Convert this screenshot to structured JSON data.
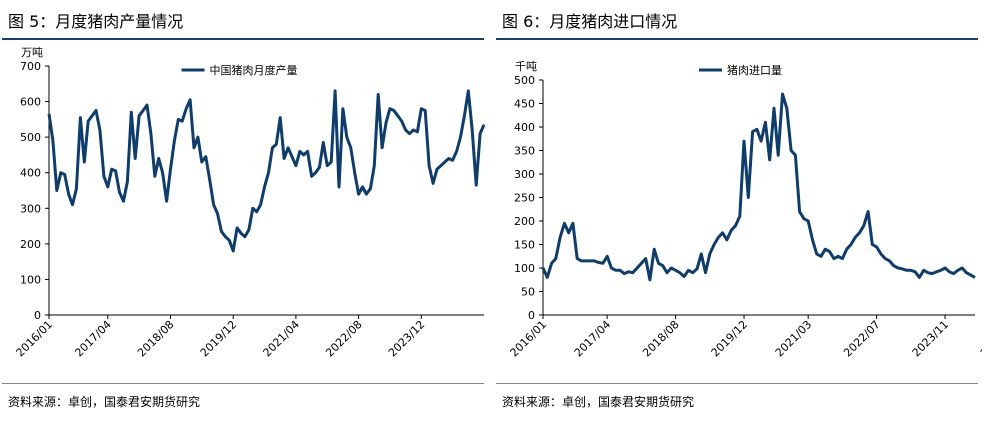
{
  "source_text": "资料来源：卓创，国泰君安期货研究",
  "colors": {
    "line": "#0d3d6e",
    "rule": "#1f3c6e"
  },
  "chart_data": [
    {
      "title": "图 5：月度猪肉产量情况",
      "type": "line",
      "unit": "万吨",
      "ylim": [
        0,
        700
      ],
      "yticks": [
        0,
        100,
        200,
        300,
        400,
        500,
        600,
        700
      ],
      "xticks": [
        "2016/01",
        "2017/04",
        "2018/08",
        "2019/12",
        "2021/04",
        "2022/08",
        "2023/12"
      ],
      "grid": false,
      "legend": "top-center",
      "series": [
        {
          "name": "中国猪肉月度产量",
          "start": "2016-01",
          "values": [
            565,
            490,
            350,
            400,
            395,
            340,
            310,
            355,
            555,
            430,
            545,
            560,
            575,
            520,
            390,
            360,
            410,
            405,
            345,
            320,
            375,
            570,
            440,
            560,
            575,
            590,
            510,
            390,
            440,
            400,
            320,
            410,
            490,
            550,
            545,
            580,
            605,
            470,
            500,
            430,
            445,
            380,
            310,
            285,
            235,
            220,
            210,
            180,
            245,
            230,
            220,
            240,
            300,
            290,
            310,
            360,
            400,
            470,
            480,
            555,
            440,
            470,
            445,
            420,
            460,
            450,
            460,
            390,
            400,
            415,
            485,
            420,
            430,
            630,
            360,
            580,
            500,
            470,
            400,
            340,
            360,
            340,
            355,
            420,
            620,
            470,
            540,
            580,
            575,
            560,
            545,
            520,
            510,
            520,
            515,
            580,
            575,
            420,
            370,
            410,
            420,
            430,
            440,
            435,
            460,
            500,
            560,
            630,
            520,
            365,
            510,
            535
          ]
        }
      ]
    },
    {
      "title": "图 6：月度猪肉进口情况",
      "type": "line",
      "unit": "千吨",
      "ylim": [
        0,
        500
      ],
      "yticks": [
        0,
        50,
        100,
        150,
        200,
        250,
        300,
        350,
        400,
        450,
        500
      ],
      "xticks": [
        "2016/01",
        "2017/04",
        "2018/08",
        "2019/12",
        "2021/03",
        "2022/07",
        "2023/11",
        "2025/03"
      ],
      "grid": false,
      "legend": "top-center",
      "series": [
        {
          "name": "猪肉进口量",
          "start": "2016-01",
          "values": [
            100,
            80,
            110,
            120,
            165,
            195,
            175,
            195,
            120,
            115,
            115,
            115,
            115,
            112,
            110,
            125,
            100,
            95,
            95,
            88,
            92,
            90,
            100,
            110,
            120,
            75,
            140,
            110,
            105,
            90,
            100,
            95,
            90,
            82,
            95,
            90,
            98,
            130,
            90,
            130,
            150,
            165,
            175,
            160,
            180,
            190,
            210,
            370,
            250,
            390,
            395,
            370,
            410,
            330,
            440,
            340,
            470,
            440,
            350,
            340,
            220,
            205,
            200,
            160,
            130,
            125,
            140,
            135,
            120,
            125,
            120,
            140,
            150,
            165,
            175,
            190,
            220,
            150,
            145,
            130,
            120,
            115,
            105,
            100,
            98,
            95,
            95,
            92,
            80,
            95,
            90,
            88,
            92,
            95,
            100,
            92,
            88,
            95,
            100,
            90,
            85,
            80
          ]
        }
      ]
    }
  ]
}
